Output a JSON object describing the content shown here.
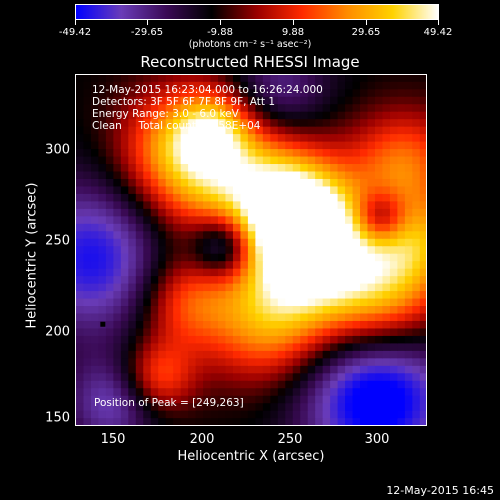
{
  "colorbar": {
    "ticks": [
      "-49.42",
      "-29.65",
      "-9.88",
      "9.88",
      "29.65",
      "49.42"
    ],
    "units": "(photons cm⁻² s⁻¹ asec⁻²)",
    "stops": [
      "#0000ff",
      "#6a3cb8",
      "#3a0a55",
      "#000000",
      "#9a0000",
      "#ff2a00",
      "#ff8c00",
      "#ffd200",
      "#ffffff"
    ]
  },
  "chart_data": {
    "type": "heatmap",
    "title": "Reconstructed RHESSI Image",
    "xlabel": "Heliocentric X (arcsec)",
    "ylabel": "Heliocentric Y (arcsec)",
    "xlim": [
      130,
      322
    ],
    "ylim": [
      148,
      340
    ],
    "xticks": [
      "150",
      "200",
      "250",
      "300"
    ],
    "yticks": [
      "150",
      "200",
      "250",
      "300"
    ],
    "colorscale_range": [
      -49.42,
      49.42
    ],
    "peak_position": [
      249,
      263
    ],
    "annotations": [
      "12-May-2015 16:23:04.000 to 16:26:24.000",
      "Detectors: 3F 5F 6F 7F 8F 9F, Att 1",
      "Energy Range: 3.0 - 6.0 keV",
      "Clean     Total counts: 2.58E+04"
    ],
    "peak_label": "Position of Peak = [249,263]",
    "marker": {
      "x": 145,
      "y": 203
    }
  },
  "timestamp": "12-May-2015 16:45"
}
